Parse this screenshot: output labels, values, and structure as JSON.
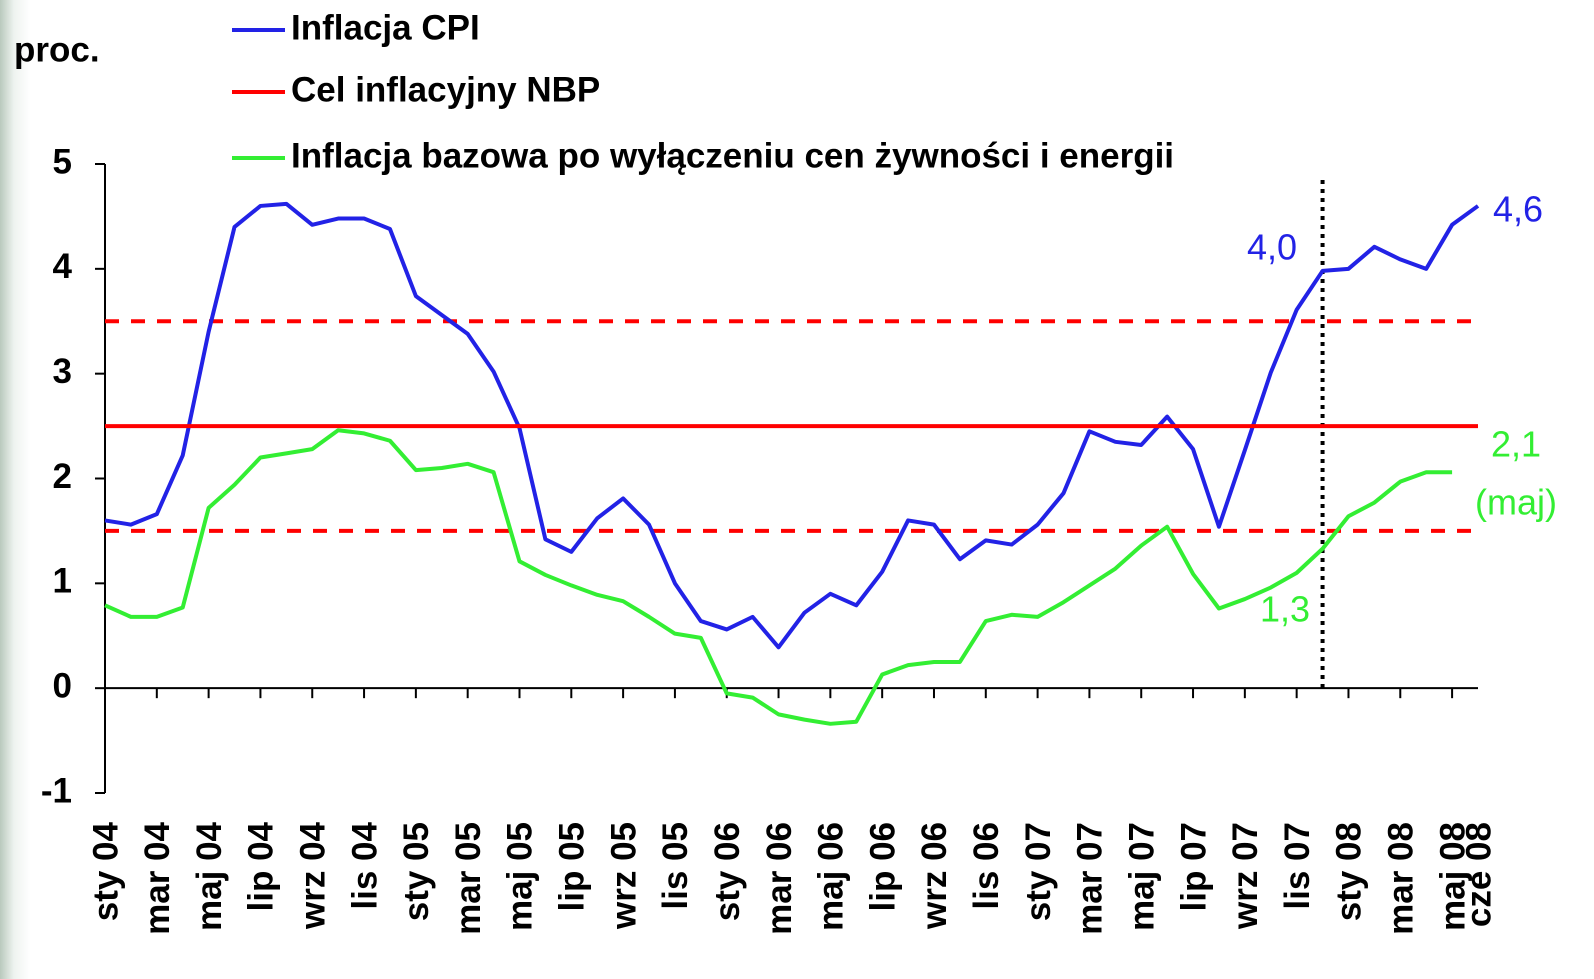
{
  "chart_data": {
    "type": "line",
    "y_axis_label": "proc.",
    "categories": [
      "sty 04",
      null,
      "mar 04",
      null,
      "maj 04",
      null,
      "lip 04",
      null,
      "wrz 04",
      null,
      "lis 04",
      null,
      "sty 05",
      null,
      "mar 05",
      null,
      "maj 05",
      null,
      "lip 05",
      null,
      "wrz 05",
      null,
      "lis 05",
      null,
      "sty 06",
      null,
      "mar 06",
      null,
      "maj 06",
      null,
      "lip 06",
      null,
      "wrz 06",
      null,
      "lis 06",
      null,
      "sty 07",
      null,
      "mar 07",
      null,
      "maj 07",
      null,
      "lip 07",
      null,
      "wrz 07",
      null,
      "lis 07",
      null,
      "sty 08",
      null,
      "mar 08",
      null,
      "maj 08",
      "cze 08"
    ],
    "series": [
      {
        "name": "Inflacja CPI",
        "color": "#2222e6",
        "values": [
          1.6,
          1.56,
          1.66,
          2.22,
          3.4,
          4.4,
          4.6,
          4.62,
          4.42,
          4.48,
          4.48,
          4.38,
          3.74,
          3.56,
          3.38,
          3.02,
          2.48,
          1.42,
          1.3,
          1.62,
          1.81,
          1.56,
          1.0,
          0.64,
          0.56,
          0.68,
          0.39,
          0.72,
          0.9,
          0.79,
          1.11,
          1.6,
          1.56,
          1.23,
          1.41,
          1.37,
          1.56,
          1.86,
          2.45,
          2.35,
          2.32,
          2.59,
          2.28,
          1.54,
          2.27,
          3.01,
          3.61,
          3.98,
          4.0,
          4.21,
          4.09,
          4.0,
          4.42,
          4.6
        ]
      },
      {
        "name": "Cel inflacyjny NBP",
        "color": "#ff0000",
        "values": [
          2.5,
          2.5,
          2.5,
          2.5,
          2.5,
          2.5,
          2.5,
          2.5,
          2.5,
          2.5,
          2.5,
          2.5,
          2.5,
          2.5,
          2.5,
          2.5,
          2.5,
          2.5,
          2.5,
          2.5,
          2.5,
          2.5,
          2.5,
          2.5,
          2.5,
          2.5,
          2.5,
          2.5,
          2.5,
          2.5,
          2.5,
          2.5,
          2.5,
          2.5,
          2.5,
          2.5,
          2.5,
          2.5,
          2.5,
          2.5,
          2.5,
          2.5,
          2.5,
          2.5,
          2.5,
          2.5,
          2.5,
          2.5,
          2.5,
          2.5,
          2.5,
          2.5,
          2.5,
          2.5
        ]
      },
      {
        "name": "Inflacja bazowa po wyłączeniu cen żywności i energii",
        "color": "#33ee33",
        "values": [
          0.79,
          0.68,
          0.68,
          0.77,
          1.72,
          1.94,
          2.2,
          2.24,
          2.28,
          2.46,
          2.43,
          2.36,
          2.08,
          2.1,
          2.14,
          2.06,
          1.21,
          1.08,
          0.98,
          0.89,
          0.83,
          0.68,
          0.52,
          0.48,
          -0.05,
          -0.09,
          -0.25,
          -0.3,
          -0.34,
          -0.32,
          0.13,
          0.22,
          0.25,
          0.25,
          0.64,
          0.7,
          0.68,
          0.82,
          0.98,
          1.14,
          1.36,
          1.54,
          1.09,
          0.76,
          0.85,
          0.96,
          1.1,
          1.33,
          1.64,
          1.77,
          1.97,
          2.06,
          2.06,
          null
        ]
      }
    ],
    "tolerance_band": [
      1.5,
      3.5
    ],
    "band_color": "#ff0000",
    "marker_index": 47,
    "annotations": [
      {
        "text": "4,0",
        "color": "#2222e6"
      },
      {
        "text": "4,6",
        "color": "#2222e6"
      },
      {
        "text": "2,1",
        "color": "#33ee33"
      },
      {
        "text": "(maj)",
        "color": "#33ee33"
      },
      {
        "text": "1,3",
        "color": "#33ee33"
      }
    ],
    "ylim": [
      -1,
      5
    ],
    "yticks": [
      -1,
      0,
      1,
      2,
      3,
      4,
      5
    ],
    "legend": "top"
  }
}
